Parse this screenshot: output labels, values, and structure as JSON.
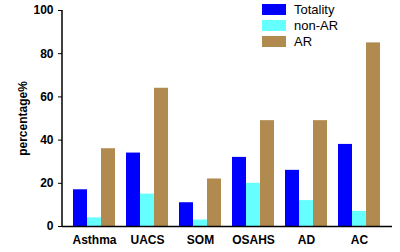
{
  "chart_data": {
    "type": "bar",
    "y_label": "percentage%",
    "categories": [
      "Asthma",
      "UACS",
      "SOM",
      "OSAHS",
      "AD",
      "AC"
    ],
    "series": [
      {
        "name": "Totality",
        "color": "#0000ff",
        "values": [
          17,
          34,
          11,
          32,
          26,
          38
        ]
      },
      {
        "name": "non-AR",
        "color": "#66ffff",
        "values": [
          4,
          15,
          3,
          20,
          12,
          7
        ]
      },
      {
        "name": "AR",
        "color": "#b08a4e",
        "values": [
          36,
          64,
          22,
          49,
          49,
          85
        ]
      }
    ],
    "ylim": [
      0,
      100
    ],
    "yticks": [
      0,
      20,
      40,
      60,
      80,
      100
    ],
    "grid": false,
    "legend": "top-right"
  }
}
